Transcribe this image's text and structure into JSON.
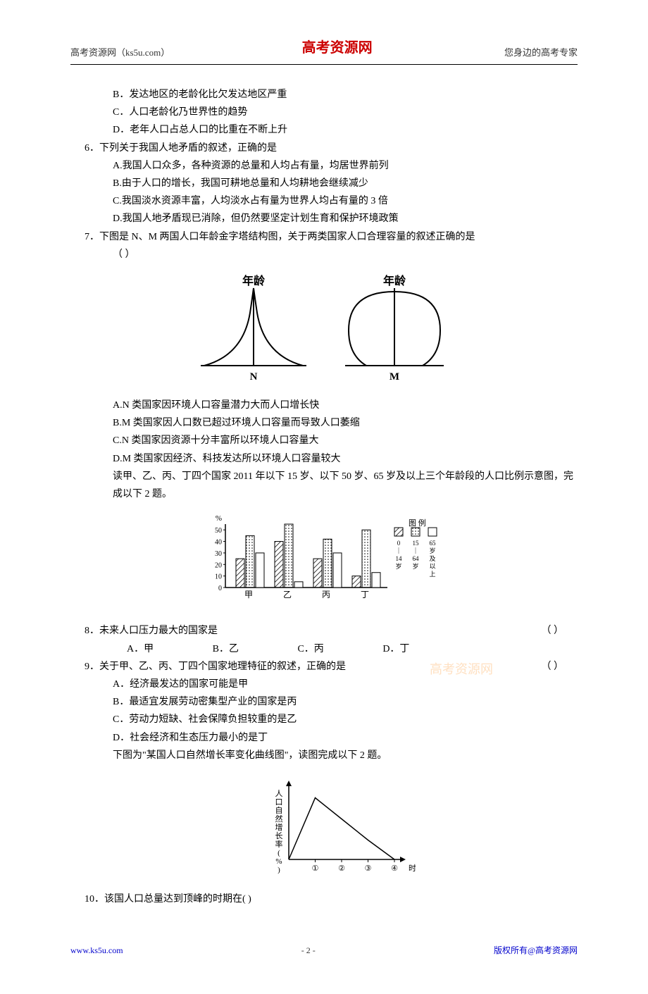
{
  "header": {
    "left": "高考资源网（ks5u.com）",
    "center": "高考资源网",
    "right": "您身边的高考专家"
  },
  "q5_partial": {
    "b": "B．发达地区的老龄化比欠发达地区严重",
    "c": "C．人口老龄化乃世界性的趋势",
    "d": "D．老年人口占总人口的比重在不断上升"
  },
  "q6": {
    "stem": "6．下列关于我国人地矛盾的叙述，正确的是",
    "a": "A.我国人口众多，各种资源的总量和人均占有量，均居世界前列",
    "b": "B.由于人口的增长，我国可耕地总量和人均耕地会继续减少",
    "c": "C.我国淡水资源丰富，人均淡水占有量为世界人均占有量的 3 倍",
    "d": "D.我国人地矛盾现已消除，但仍然要坚定计划生育和保护环境政策"
  },
  "q7": {
    "stem": "7．下图是 N、M 两国人口年龄金字塔结构图，关于两类国家人口合理容量的叙述正确的是",
    "paren": "（      ）",
    "pyramid_labels": {
      "left": "年龄",
      "right": "年龄",
      "n": "N",
      "m": "M"
    },
    "a": "A.N 类国家因环境人口容量潜力大而人口增长快",
    "b": "B.M 类国家因人口数已超过环境人口容量而导致人口萎缩",
    "c": "C.N 类国家因资源十分丰富所以环境人口容量大",
    "d": "D.M 类国家因经济、科技发达所以环境人口容量较大",
    "intro_chart": "读甲、乙、丙、丁四个国家 2011 年以下 15 岁、以下 50 岁、65 岁及以上三个年龄段的人口比例示意图，完成以下 2 题。"
  },
  "barchart": {
    "ylabel": "%",
    "yticks": [
      0,
      10,
      20,
      30,
      40,
      50
    ],
    "groups": [
      "甲",
      "乙",
      "丙",
      "丁"
    ],
    "legend_title": "图 例",
    "legend_items": [
      "0｜14岁",
      "15｜64岁",
      "65岁及以上"
    ],
    "data": {
      "甲": [
        25,
        45,
        30
      ],
      "乙": [
        40,
        55,
        5
      ],
      "丙": [
        25,
        42,
        30
      ],
      "丁": [
        10,
        50,
        13
      ]
    },
    "colors": {
      "axis": "#000000",
      "fill_hatch": "#000000"
    }
  },
  "q8": {
    "stem": "8．未来人口压力最大的国家是",
    "options": {
      "a": "A．甲",
      "b": "B．乙",
      "c": "C．丙",
      "d": "D．丁"
    },
    "paren": "（      ）"
  },
  "q9": {
    "stem": "9．关于甲、乙、丙、丁四个国家地理特征的叙述，正确的是",
    "paren": "（      ）",
    "a": "A．经济最发达的国家可能是甲",
    "b": "B．最适宜发展劳动密集型产业的国家是丙",
    "c": "C．劳动力短缺、社会保障负担较重的是乙",
    "d": "D．社会经济和生态压力最小的是丁",
    "intro_chart": "下图为\"某国人口自然增长率变化曲线图\"，读图完成以下 2 题。"
  },
  "linechart": {
    "ylabel": "人口自然增长率(%)",
    "xlabel": "时间",
    "xticks": [
      "①",
      "②",
      "③",
      "④"
    ],
    "points": [
      [
        0,
        0
      ],
      [
        1,
        3.5
      ],
      [
        2,
        2.3
      ],
      [
        3,
        1.1
      ],
      [
        4,
        0
      ]
    ]
  },
  "q10": {
    "stem": "10．该国人口总量达到顶峰的时期在(      )"
  },
  "watermark": "高考资源网",
  "footer": {
    "left": "www.ks5u.com",
    "center": "- 2 -",
    "right": "版权所有@高考资源网"
  }
}
